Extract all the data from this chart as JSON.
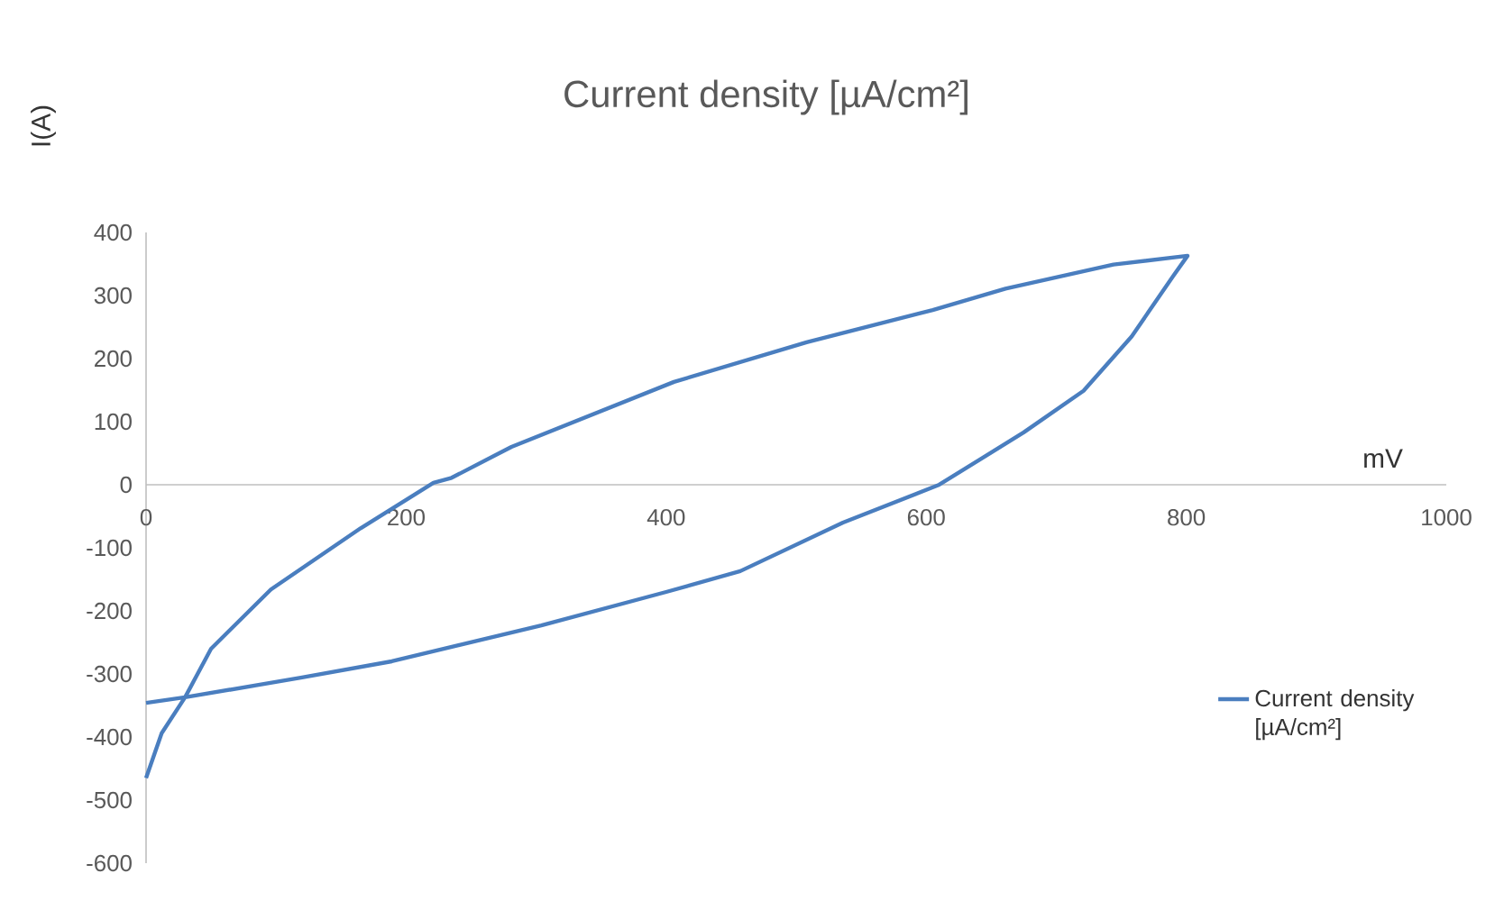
{
  "chart_data": {
    "type": "line",
    "title": "Current density [µA/cm²]",
    "xlabel": "mV",
    "ylabel": "I(A)",
    "series": [
      {
        "name": "Current density [µA/cm²]",
        "color": "#4a7ebf",
        "x": [
          0,
          12,
          30,
          50,
          96,
          165,
          221,
          235,
          281,
          406,
          508,
          605,
          661,
          744,
          801,
          790,
          758,
          721,
          675,
          610,
          536,
          457,
          400,
          304,
          189,
          119,
          30,
          0
        ],
        "values": [
          -465,
          -394,
          -337,
          -260,
          -166,
          -69,
          3,
          11,
          60,
          163,
          226,
          277,
          311,
          349,
          363,
          331,
          235,
          149,
          83,
          0,
          -60,
          -137,
          -170,
          -223,
          -280,
          -306,
          -337,
          -346
        ]
      }
    ],
    "xlim": [
      0,
      1000
    ],
    "xticks": [
      0,
      200,
      400,
      600,
      800,
      1000
    ],
    "ylim": [
      -600,
      400
    ],
    "yticks": [
      -600,
      -500,
      -400,
      -300,
      -200,
      -100,
      0,
      100,
      200,
      300,
      400
    ],
    "grid": false,
    "legend": "right",
    "marker": "none",
    "line_style": "solid"
  }
}
